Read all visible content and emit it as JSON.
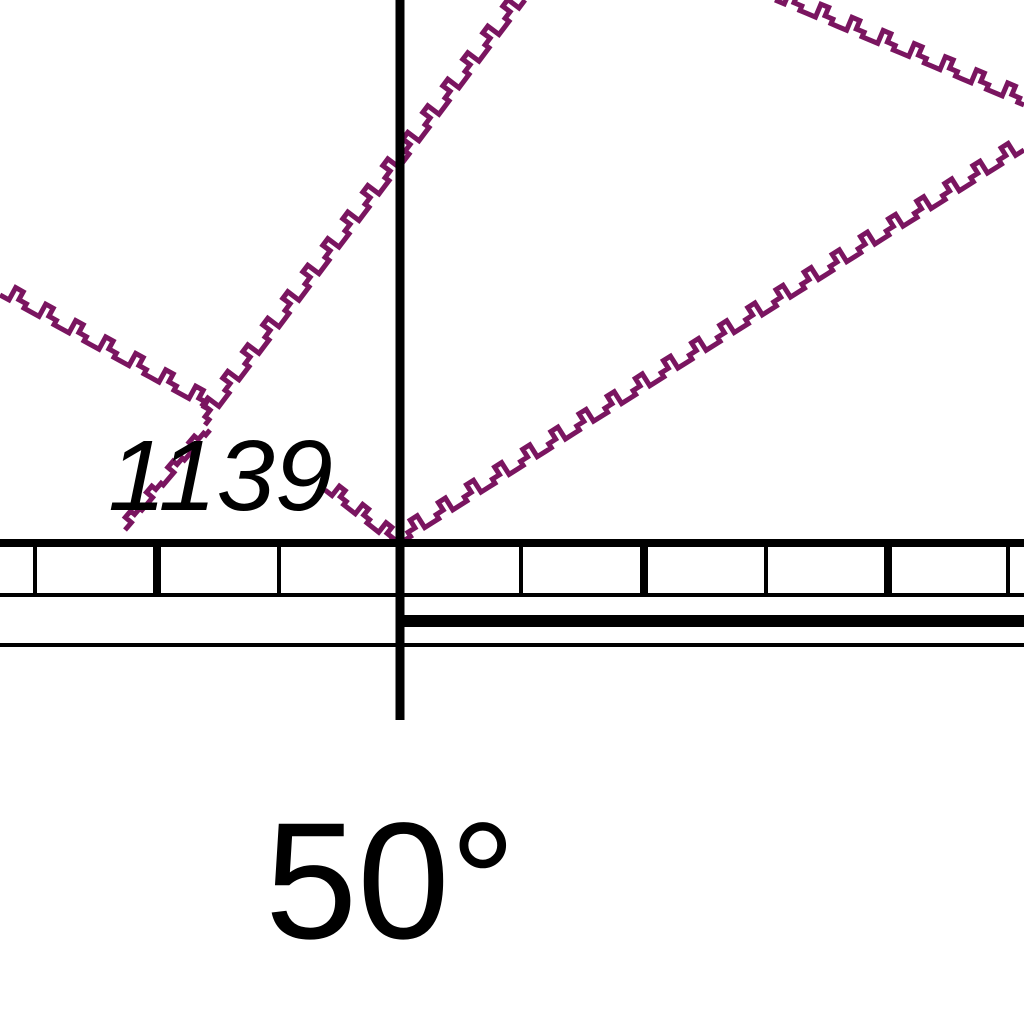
{
  "map": {
    "feature_label": "1139",
    "latitude_label": "50°",
    "colors": {
      "background": "#ffffff",
      "grid": "#000000",
      "airway": "#7a1560"
    }
  }
}
